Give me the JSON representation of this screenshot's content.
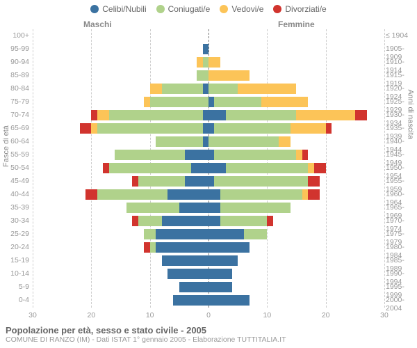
{
  "legend": {
    "items": [
      {
        "label": "Celibi/Nubili",
        "color": "#3b72a1"
      },
      {
        "label": "Coniugati/e",
        "color": "#b0d28b"
      },
      {
        "label": "Vedovi/e",
        "color": "#fcc458"
      },
      {
        "label": "Divorziati/e",
        "color": "#d1342e"
      }
    ]
  },
  "headers": {
    "male": "Maschi",
    "female": "Femmine"
  },
  "axis": {
    "left_label": "Fasce di età",
    "right_label": "Anni di nascita",
    "max": 30,
    "ticks": [
      30,
      20,
      10,
      0,
      10,
      20,
      30
    ]
  },
  "footer": {
    "title": "Popolazione per età, sesso e stato civile - 2005",
    "sub": "COMUNE DI RANZO (IM) - Dati ISTAT 1° gennaio 2005 - Elaborazione TUTTITALIA.IT"
  },
  "colors": {
    "single": "#3b72a1",
    "married": "#b0d28b",
    "widowed": "#fcc458",
    "divorced": "#d1342e",
    "grid": "#cccccc",
    "center": "#777777",
    "text": "#999999"
  },
  "rows": [
    {
      "age": "100+",
      "birth": "≤ 1904",
      "m": [
        0,
        0,
        0,
        0
      ],
      "f": [
        0,
        0,
        0,
        0
      ]
    },
    {
      "age": "95-99",
      "birth": "1905-1909",
      "m": [
        1,
        0,
        0,
        0
      ],
      "f": [
        0,
        0,
        0,
        0
      ]
    },
    {
      "age": "90-94",
      "birth": "1910-1914",
      "m": [
        0,
        1,
        1,
        0
      ],
      "f": [
        0,
        0,
        2,
        0
      ]
    },
    {
      "age": "85-89",
      "birth": "1915-1919",
      "m": [
        0,
        2,
        0,
        0
      ],
      "f": [
        0,
        0,
        7,
        0
      ]
    },
    {
      "age": "80-84",
      "birth": "1920-1924",
      "m": [
        1,
        7,
        2,
        0
      ],
      "f": [
        0,
        5,
        10,
        0
      ]
    },
    {
      "age": "75-79",
      "birth": "1925-1929",
      "m": [
        0,
        10,
        1,
        0
      ],
      "f": [
        1,
        8,
        8,
        0
      ]
    },
    {
      "age": "70-74",
      "birth": "1930-1934",
      "m": [
        1,
        16,
        2,
        1
      ],
      "f": [
        3,
        12,
        10,
        2
      ]
    },
    {
      "age": "65-69",
      "birth": "1935-1939",
      "m": [
        1,
        18,
        1,
        2
      ],
      "f": [
        1,
        13,
        6,
        1
      ]
    },
    {
      "age": "60-64",
      "birth": "1940-1944",
      "m": [
        1,
        8,
        0,
        0
      ],
      "f": [
        0,
        12,
        2,
        0
      ]
    },
    {
      "age": "55-59",
      "birth": "1945-1949",
      "m": [
        4,
        12,
        0,
        0
      ],
      "f": [
        1,
        14,
        1,
        1
      ]
    },
    {
      "age": "50-54",
      "birth": "1950-1954",
      "m": [
        3,
        14,
        0,
        1
      ],
      "f": [
        3,
        14,
        1,
        2
      ]
    },
    {
      "age": "45-49",
      "birth": "1955-1959",
      "m": [
        4,
        8,
        0,
        1
      ],
      "f": [
        1,
        16,
        0,
        2
      ]
    },
    {
      "age": "40-44",
      "birth": "1960-1964",
      "m": [
        7,
        12,
        0,
        2
      ],
      "f": [
        2,
        14,
        1,
        2
      ]
    },
    {
      "age": "35-39",
      "birth": "1965-1969",
      "m": [
        5,
        9,
        0,
        0
      ],
      "f": [
        2,
        12,
        0,
        0
      ]
    },
    {
      "age": "30-34",
      "birth": "1970-1974",
      "m": [
        8,
        4,
        0,
        1
      ],
      "f": [
        2,
        8,
        0,
        1
      ]
    },
    {
      "age": "25-29",
      "birth": "1975-1979",
      "m": [
        9,
        2,
        0,
        0
      ],
      "f": [
        6,
        4,
        0,
        0
      ]
    },
    {
      "age": "20-24",
      "birth": "1980-1984",
      "m": [
        9,
        1,
        0,
        1
      ],
      "f": [
        7,
        0,
        0,
        0
      ]
    },
    {
      "age": "15-19",
      "birth": "1985-1989",
      "m": [
        8,
        0,
        0,
        0
      ],
      "f": [
        5,
        0,
        0,
        0
      ]
    },
    {
      "age": "10-14",
      "birth": "1990-1994",
      "m": [
        7,
        0,
        0,
        0
      ],
      "f": [
        4,
        0,
        0,
        0
      ]
    },
    {
      "age": "5-9",
      "birth": "1995-1999",
      "m": [
        5,
        0,
        0,
        0
      ],
      "f": [
        4,
        0,
        0,
        0
      ]
    },
    {
      "age": "0-4",
      "birth": "2000-2004",
      "m": [
        6,
        0,
        0,
        0
      ],
      "f": [
        7,
        0,
        0,
        0
      ]
    }
  ]
}
